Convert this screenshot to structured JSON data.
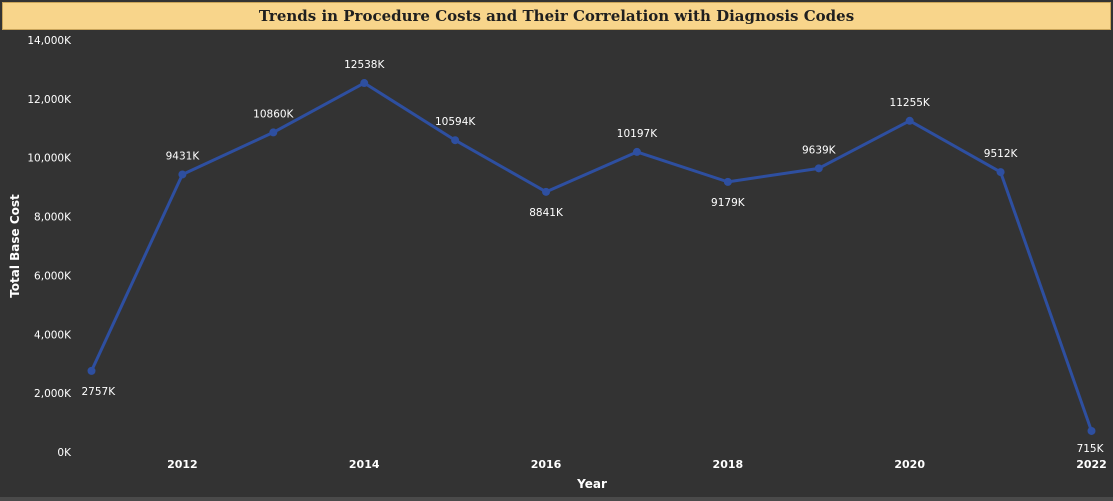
{
  "chart_data": {
    "type": "line",
    "title": "Trends in Procedure Costs and Their Correlation with Diagnosis Codes",
    "xlabel": "Year",
    "ylabel": "Total Base Cost",
    "x": [
      2011,
      2012,
      2013,
      2014,
      2015,
      2016,
      2017,
      2018,
      2019,
      2020,
      2021,
      2022
    ],
    "x_tick_values": [
      2012,
      2014,
      2016,
      2018,
      2020,
      2022
    ],
    "x_tick_labels": [
      "2012",
      "2014",
      "2016",
      "2018",
      "2020",
      "2022"
    ],
    "ylim": [
      0,
      14000
    ],
    "y_tick_values": [
      0,
      2000,
      4000,
      6000,
      8000,
      10000,
      12000,
      14000
    ],
    "y_tick_labels": [
      "0K",
      "2,000K",
      "4,000K",
      "6,000K",
      "8,000K",
      "10,000K",
      "12,000K",
      "14,000K"
    ],
    "series": [
      {
        "values": [
          2757,
          9431,
          10860,
          12538,
          10594,
          8841,
          10197,
          9179,
          9639,
          11255,
          9512,
          715
        ],
        "data_labels": [
          "2757K",
          "9431K",
          "10860K",
          "12538K",
          "10594K",
          "8841K",
          "10197K",
          "9179K",
          "9639K",
          "11255K",
          "9512K",
          "715K"
        ]
      }
    ],
    "grid": false,
    "colors": {
      "line": "#2e4fa0",
      "background": "#333333",
      "title_bar": "#f8d58b"
    }
  }
}
